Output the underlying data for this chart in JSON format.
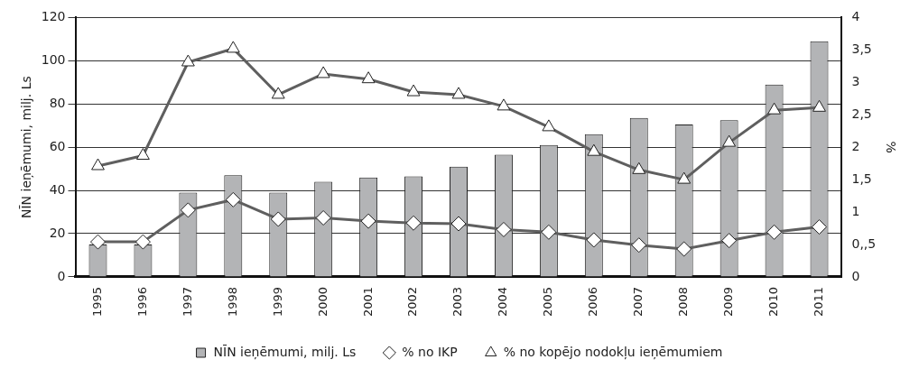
{
  "chart_data": {
    "type": "bar",
    "categories": [
      "1995",
      "1996",
      "1997",
      "1998",
      "1999",
      "2000",
      "2001",
      "2002",
      "2003",
      "2004",
      "2005",
      "2006",
      "2007",
      "2008",
      "2009",
      "2010",
      "2011"
    ],
    "ylabel": "NĪN ieņēmumi, milj. Ls",
    "y2label": "%",
    "ylim": [
      0,
      120
    ],
    "yticks": [
      0,
      20,
      40,
      60,
      80,
      100,
      120
    ],
    "y2lim": [
      0,
      4
    ],
    "y2ticks": [
      0,
      {
        "value": 0.5,
        "label": "0,,5"
      },
      1,
      {
        "value": 1.5,
        "label": "1,5"
      },
      2,
      {
        "value": 2.5,
        "label": "2,5"
      },
      3,
      {
        "value": 3.5,
        "label": "3,5"
      },
      4
    ],
    "grid": "y",
    "legend": "bottom",
    "series": [
      {
        "name": "NĪN ieņēmumi, milj. Ls",
        "color": "#b3b4b6",
        "values": [
          15,
          15,
          39,
          47,
          39,
          44,
          46,
          46.5,
          51,
          56.5,
          61,
          66,
          73.5,
          70.5,
          72.5,
          89,
          109
        ]
      },
      {
        "name": "% no IKP",
        "type": "line",
        "axis": "y2",
        "marker": "diamond",
        "color": "#5f5f5f",
        "values": [
          0.54,
          0.54,
          1.03,
          1.19,
          0.89,
          0.91,
          0.86,
          0.83,
          0.82,
          0.73,
          0.69,
          0.57,
          0.49,
          0.43,
          0.56,
          0.69,
          0.77
        ]
      },
      {
        "name": "% no kopējo nodokļu ieņēmumiem",
        "type": "line",
        "axis": "y2",
        "marker": "triangle",
        "color": "#5f5f5f",
        "values": [
          1.71,
          1.87,
          3.31,
          3.52,
          2.81,
          3.13,
          3.05,
          2.85,
          2.81,
          2.63,
          2.31,
          1.93,
          1.65,
          1.5,
          2.07,
          2.57,
          2.61
        ]
      }
    ]
  }
}
